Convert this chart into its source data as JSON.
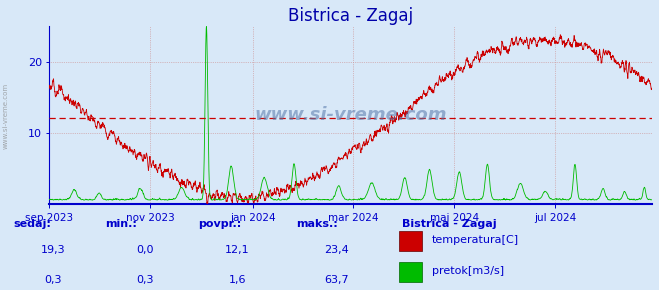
{
  "title": "Bistrica - Zagaj",
  "title_color": "#0000aa",
  "title_fontsize": 12,
  "bg_color": "#d8e8f8",
  "temp_avg": 12.1,
  "temp_min": 0.0,
  "temp_max": 23.4,
  "temp_sedaj": 19.3,
  "flow_avg": 1.6,
  "flow_min": 0.3,
  "flow_max": 63.7,
  "flow_sedaj": 0.3,
  "ylim": [
    0,
    25
  ],
  "yticks": [
    10,
    20
  ],
  "grid_color": "#cc8888",
  "temp_line_color": "#cc0000",
  "flow_line_color": "#00bb00",
  "avg_line_color": "#cc0000",
  "bottom_line_color": "#0000cc",
  "text_color": "#0000cc",
  "watermark": "www.si-vreme.com",
  "xlabel_ticks": [
    "sep 2023",
    "nov 2023",
    "jan 2024",
    "mar 2024",
    "maj 2024",
    "jul 2024"
  ],
  "table_headers": [
    "sedaj:",
    "min.:",
    "povpr.:",
    "maks.:"
  ],
  "table_row1": [
    "19,3",
    "0,0",
    "12,1",
    "23,4"
  ],
  "table_row2": [
    "0,3",
    "0,3",
    "1,6",
    "63,7"
  ],
  "legend_title": "Bistrica - Zagaj",
  "legend_temp": "temperatura[C]",
  "legend_flow": "pretok[m3/s]"
}
